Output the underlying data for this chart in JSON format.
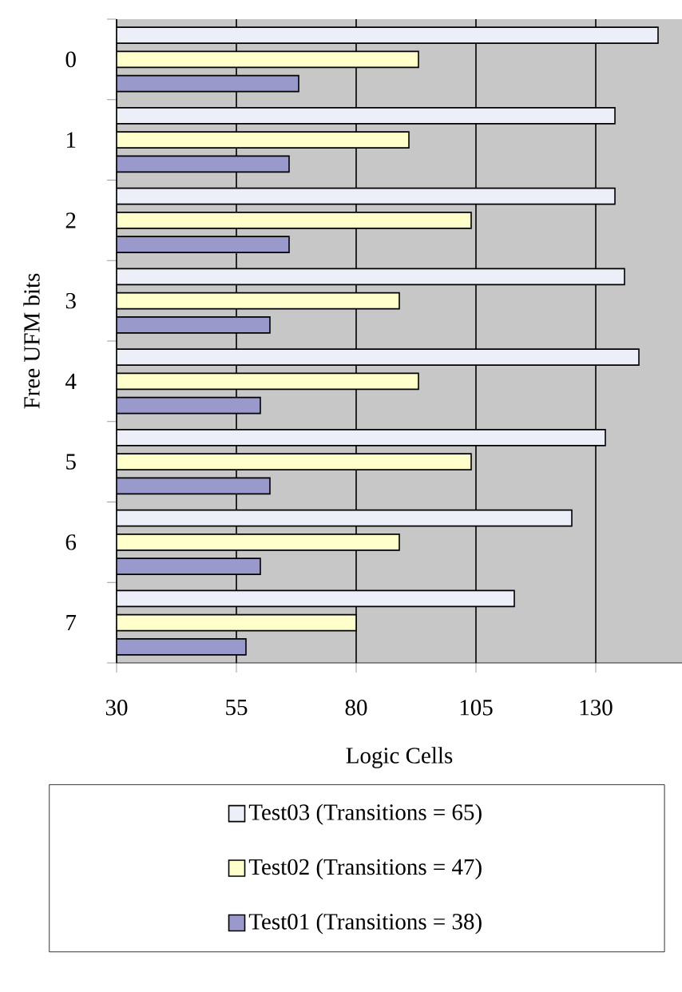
{
  "chart_data": {
    "type": "bar",
    "orientation": "horizontal",
    "xlabel": "Logic Cells",
    "ylabel": "Free UFM bits",
    "categories": [
      "0",
      "1",
      "2",
      "3",
      "4",
      "5",
      "6",
      "7"
    ],
    "series": [
      {
        "name": "Test03 (Transitions = 65)",
        "color": "#eceef8",
        "values": [
          143,
          134,
          134,
          136,
          139,
          132,
          125,
          113
        ]
      },
      {
        "name": "Test02 (Transitions = 47)",
        "color": "#ffffcc",
        "values": [
          93,
          91,
          104,
          89,
          93,
          104,
          89,
          80
        ]
      },
      {
        "name": "Test01 (Transitions = 38)",
        "color": "#9999cc",
        "values": [
          68,
          66,
          66,
          62,
          60,
          62,
          60,
          57
        ]
      }
    ],
    "xlim": [
      30,
      148
    ],
    "xticks": [
      30,
      55,
      80,
      105,
      130
    ],
    "grid": "x",
    "legend": "bottom"
  }
}
